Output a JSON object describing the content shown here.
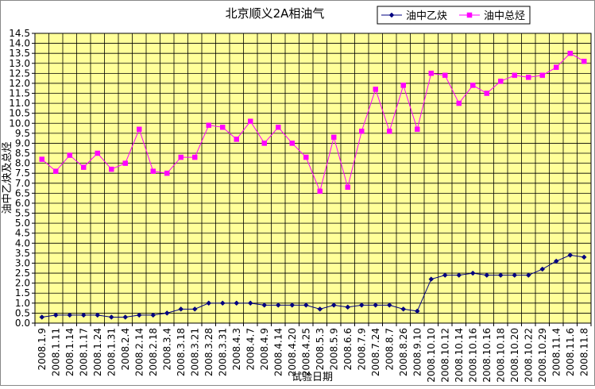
{
  "chart_data": {
    "type": "line",
    "title": "北京顺义2A相油气",
    "xlabel": "试验日期",
    "ylabel": "油中乙炔及总烃",
    "ylim": [
      0,
      14.5
    ],
    "ytick_step": 0.5,
    "grid": true,
    "legend_position": "top-right",
    "categories": [
      "2008.1.9",
      "2008.1.11",
      "2008.1.14",
      "2008.1.17",
      "2008.1.24",
      "2008.1.31",
      "2008.2.4",
      "2008.2.14",
      "2008.2.18",
      "2008.3.4",
      "2008.3.18",
      "2008.3.21",
      "2008.3.28",
      "2008.3.31",
      "2008.4.3",
      "2008.4.7",
      "2008.4.9",
      "2008.4.14",
      "2008.4.20",
      "2008.4.25",
      "2008.5.3",
      "2008.5.9",
      "2008.6.6",
      "2008.7.9",
      "2008.7.24",
      "2008.8.7",
      "2008.8.26",
      "2008.9.10",
      "2008.10.10",
      "2008.10.12",
      "2008.10.14",
      "2008.10.16",
      "2008.10.16",
      "2008.10.18",
      "2008.10.20",
      "2008.10.22",
      "2008.10.29",
      "2008.11.4",
      "2008.11.6",
      "2008.11.8"
    ],
    "series": [
      {
        "name": "油中乙炔",
        "color": "#000080",
        "marker": "diamond",
        "values": [
          0.3,
          0.4,
          0.4,
          0.4,
          0.4,
          0.3,
          0.3,
          0.4,
          0.4,
          0.5,
          0.7,
          0.7,
          1.0,
          1.0,
          1.0,
          1.0,
          0.9,
          0.9,
          0.9,
          0.9,
          0.7,
          0.9,
          0.8,
          0.9,
          0.9,
          0.9,
          0.7,
          0.6,
          2.2,
          2.4,
          2.4,
          2.5,
          2.4,
          2.4,
          2.4,
          2.4,
          2.7,
          3.1,
          3.4,
          3.3
        ]
      },
      {
        "name": "油中总烃",
        "color": "#ff00ff",
        "marker": "square",
        "values": [
          8.2,
          7.6,
          8.4,
          7.8,
          8.5,
          7.7,
          8.0,
          9.7,
          7.6,
          7.5,
          8.3,
          8.3,
          9.9,
          9.8,
          9.2,
          10.1,
          9.0,
          9.8,
          9.0,
          8.3,
          6.6,
          9.3,
          6.8,
          9.6,
          11.7,
          9.6,
          11.9,
          9.7,
          12.5,
          12.4,
          11.0,
          11.9,
          11.5,
          12.1,
          12.4,
          12.3,
          12.4,
          12.8,
          13.5,
          13.1
        ]
      }
    ]
  }
}
